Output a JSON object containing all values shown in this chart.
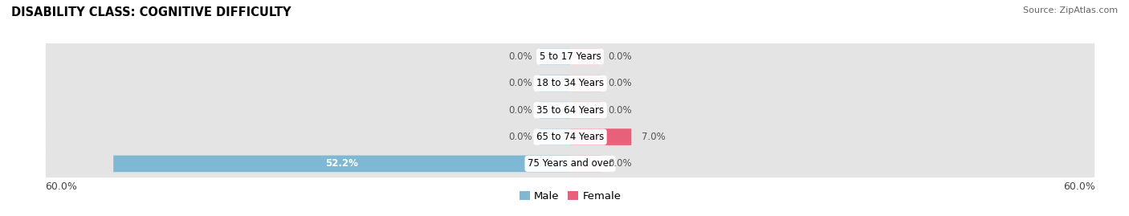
{
  "title": "DISABILITY CLASS: COGNITIVE DIFFICULTY",
  "source": "Source: ZipAtlas.com",
  "categories": [
    "5 to 17 Years",
    "18 to 34 Years",
    "35 to 64 Years",
    "65 to 74 Years",
    "75 Years and over"
  ],
  "male_values": [
    0.0,
    0.0,
    0.0,
    0.0,
    52.2
  ],
  "female_values": [
    0.0,
    0.0,
    0.0,
    7.0,
    0.0
  ],
  "male_color": "#7eb8d4",
  "female_color_strong": "#e8607a",
  "female_color_light": "#f2aab8",
  "axis_max": 60.0,
  "bar_height": 0.62,
  "row_bg_color": "#e4e4e4",
  "label_fontsize": 8.5,
  "title_fontsize": 10.5,
  "source_fontsize": 8,
  "tick_fontsize": 9,
  "value_fontsize": 8.5,
  "small_bar_width": 3.5
}
